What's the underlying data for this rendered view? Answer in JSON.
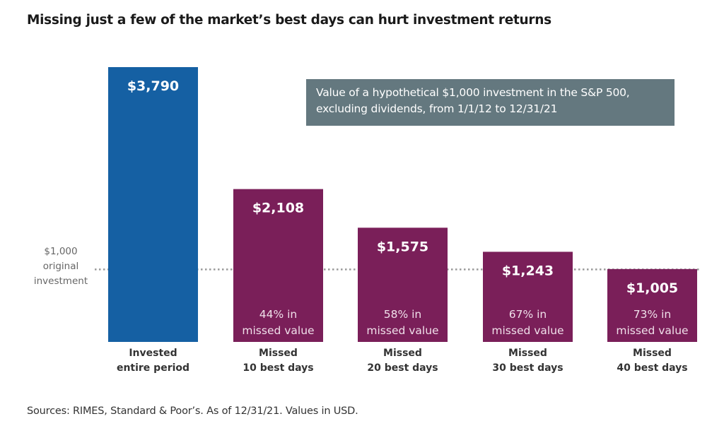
{
  "chart_data": {
    "type": "bar",
    "title": "Missing just a few of the market’s best days can hurt investment returns",
    "annotation": "Value of a hypothetical $1,000 investment in the S&P 500, excluding dividends, from 1/1/12 to 12/31/21",
    "source": "Sources: RIMES, Standard & Poor’s. As of 12/31/21. Values in USD.",
    "reference_line": {
      "value": 1000,
      "label": [
        "$1,000",
        "original",
        "investment"
      ]
    },
    "categories": [
      [
        "Invested",
        "entire period"
      ],
      [
        "Missed",
        "10 best days"
      ],
      [
        "Missed",
        "20 best days"
      ],
      [
        "Missed",
        "30 best days"
      ],
      [
        "Missed",
        "40 best days"
      ]
    ],
    "values": [
      3790,
      2108,
      1575,
      1243,
      1005
    ],
    "value_labels": [
      "$3,790",
      "$2,108",
      "$1,575",
      "$1,243",
      "$1,005"
    ],
    "missed_labels": [
      null,
      [
        "44% in",
        "missed value"
      ],
      [
        "58% in",
        "missed value"
      ],
      [
        "67% in",
        "missed value"
      ],
      [
        "73% in",
        "missed value"
      ]
    ],
    "colors": [
      "#1560a3",
      "#7a1f59",
      "#7a1f59",
      "#7a1f59",
      "#7a1f59"
    ],
    "ylim": [
      0,
      3790
    ],
    "grid": false
  }
}
